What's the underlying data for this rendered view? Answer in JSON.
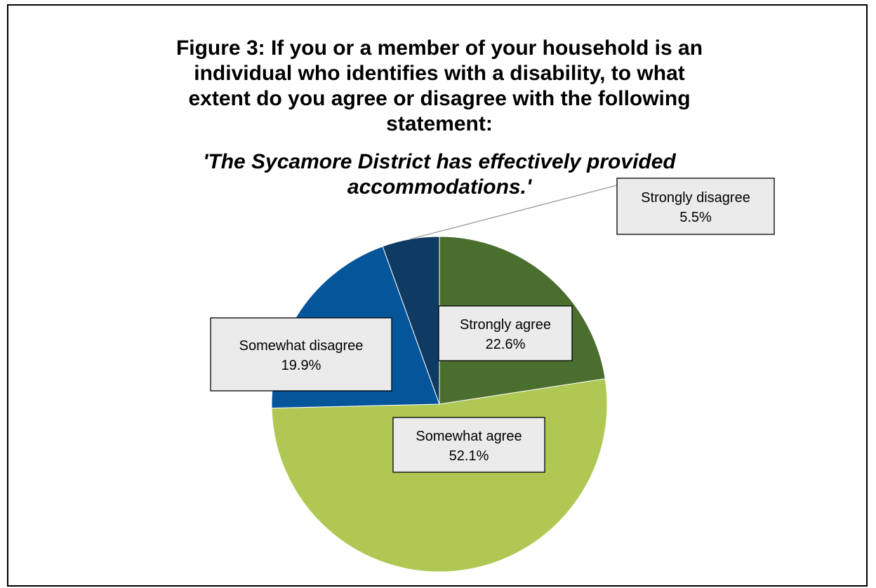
{
  "chart_data": {
    "type": "pie",
    "title": "Figure 3: If you or a member of your household is an individual who identifies with a disability, to what extent do you agree or disagree with the following statement:",
    "subtitle": "'The Sycamore District has effectively provided accommodations.'",
    "title_lines": [
      "Figure 3: If you or a member of your household is an",
      "individual who identifies with a disability, to what",
      "extent do you agree or disagree with the following",
      "statement:"
    ],
    "subtitle_lines": [
      "'The Sycamore District has effectively provided",
      "accommodations.'"
    ],
    "slices": [
      {
        "label": "Strongly agree",
        "value": 22.6,
        "value_label": "22.6%",
        "color": "#4a6e2e"
      },
      {
        "label": "Somewhat agree",
        "value": 52.1,
        "value_label": "52.1%",
        "color": "#aec853"
      },
      {
        "label": "Somewhat disagree",
        "value": 19.9,
        "value_label": "19.9%",
        "color": "#04559a"
      },
      {
        "label": "Strongly disagree",
        "value": 5.5,
        "value_label": "5.5%",
        "color": "#0f3a62"
      }
    ]
  }
}
